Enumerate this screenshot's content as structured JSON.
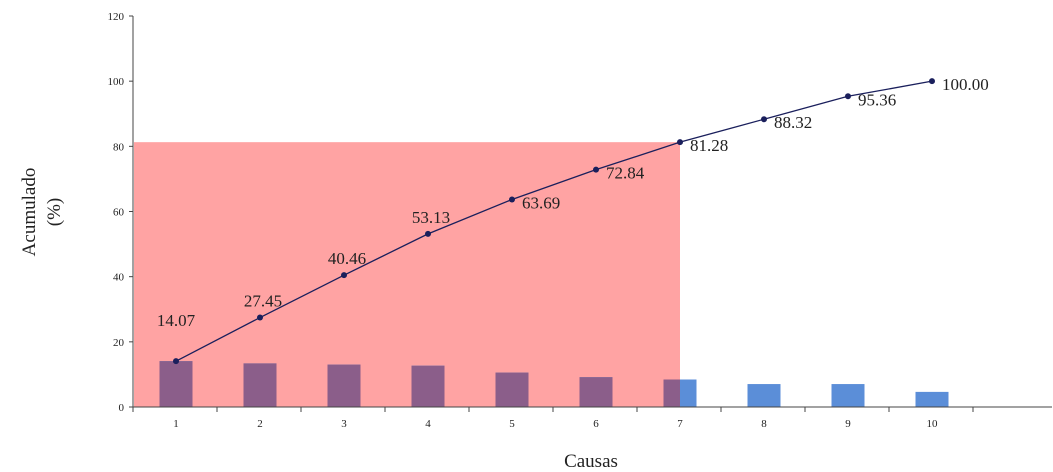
{
  "chart_data": {
    "type": "bar",
    "categories": [
      "1",
      "2",
      "3",
      "4",
      "5",
      "6",
      "7",
      "8",
      "9",
      "10"
    ],
    "series": [
      {
        "values": [
          14.07,
          13.38,
          13.01,
          12.67,
          10.56,
          9.15,
          8.44,
          7.04,
          7.04,
          4.64
        ],
        "color": "#5b8ed8",
        "highlight_color": "#8b5e8a"
      },
      {
        "type": "line",
        "values": [
          14.07,
          27.45,
          40.46,
          53.13,
          63.69,
          72.84,
          81.28,
          88.32,
          95.36,
          100.0
        ],
        "labels": [
          "14.07",
          "27.45",
          "40.46",
          "53.13",
          "63.69",
          "72.84",
          "81.28",
          "88.32",
          "95.36",
          "100.00"
        ],
        "color": "#1a1f5c"
      }
    ],
    "highlight": {
      "from_category": "1",
      "to_category": "7",
      "y_to": 81.28,
      "color": "#ffa3a3"
    },
    "xlabel": "Causas",
    "ylabel_line1": "Acumulado",
    "ylabel_line2": "(%)",
    "ylim": [
      0,
      120
    ],
    "yticks": [
      "0",
      "20",
      "40",
      "60",
      "80",
      "100",
      "120"
    ],
    "grid": false
  }
}
